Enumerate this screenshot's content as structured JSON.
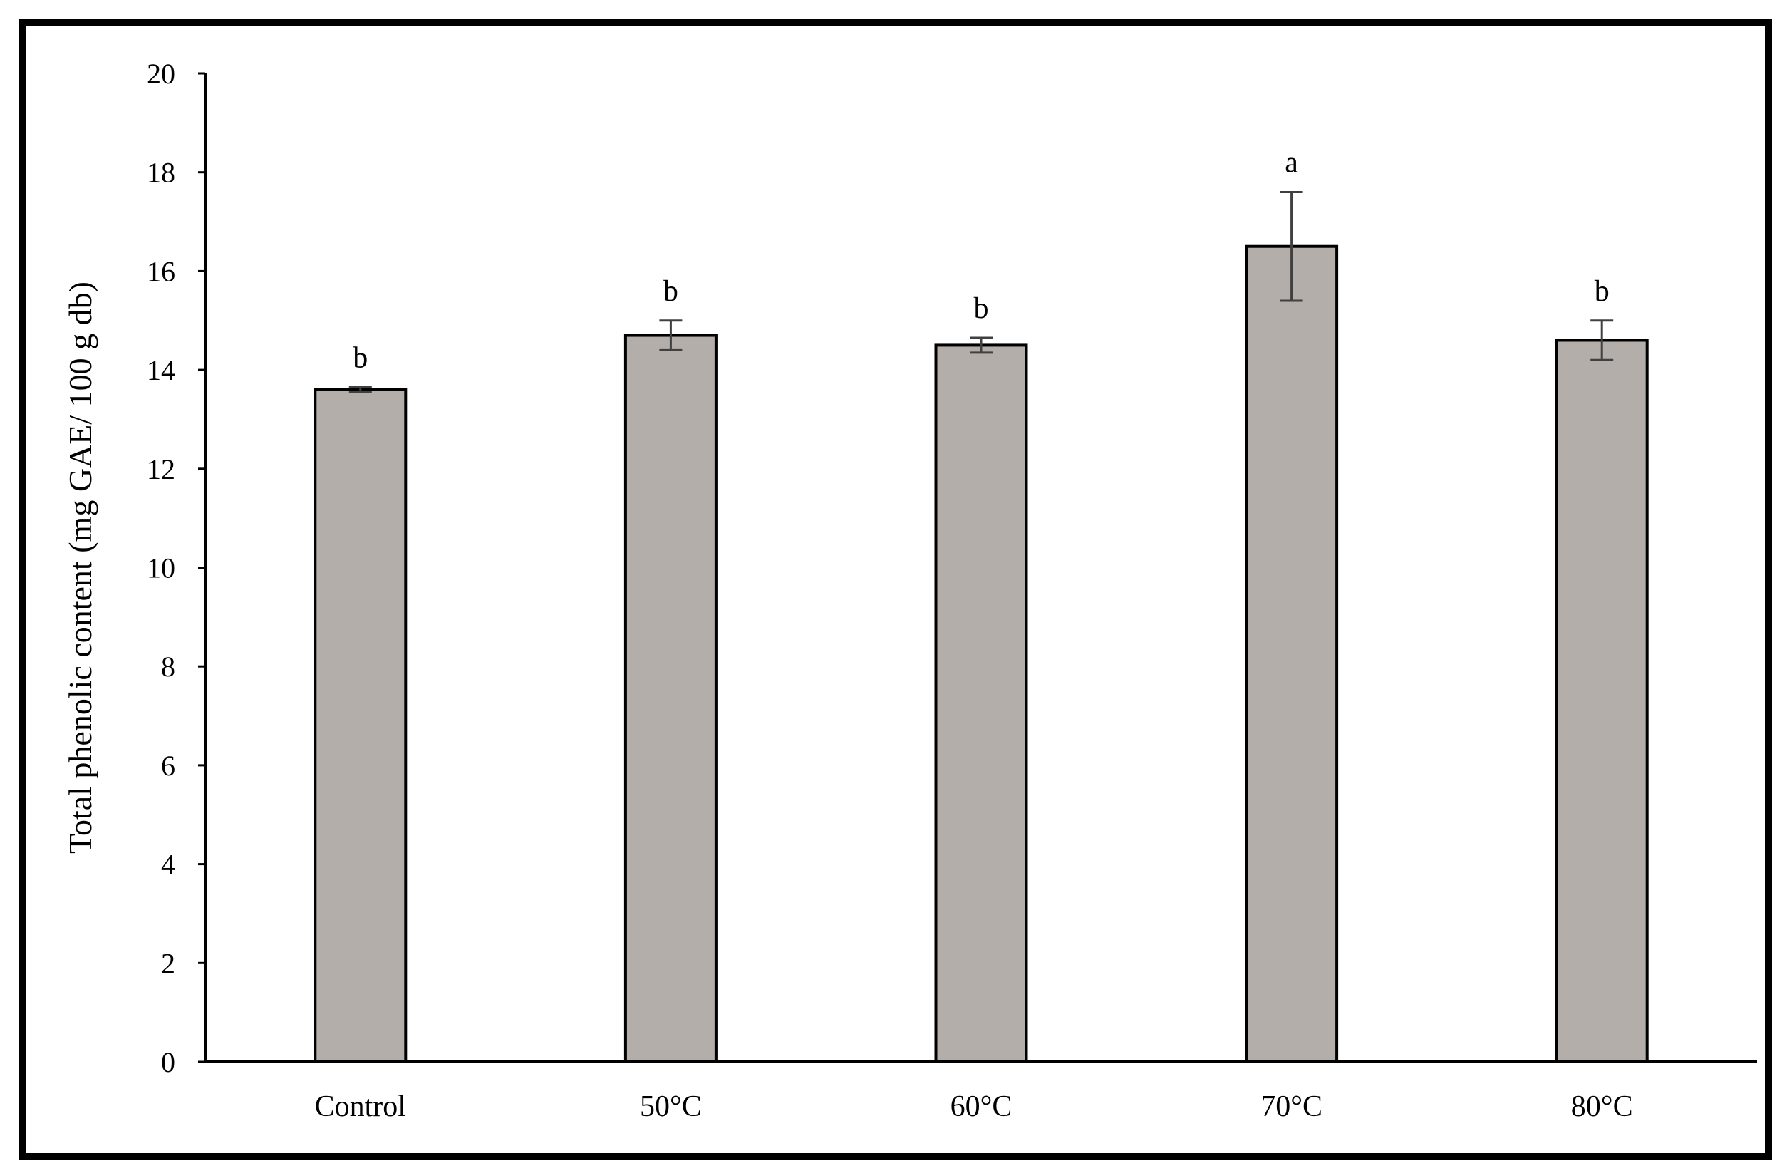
{
  "chart_data": {
    "type": "bar",
    "title": "",
    "xlabel": "",
    "ylabel": "Total phenolic content (mg GAE/ 100 g db)",
    "ylim": [
      0,
      20
    ],
    "yticks": [
      0,
      2,
      4,
      6,
      8,
      10,
      12,
      14,
      16,
      18,
      20
    ],
    "grid": false,
    "legend": "none",
    "categories": [
      "Control",
      "50°C",
      "60°C",
      "70°C",
      "80°C"
    ],
    "values": [
      13.6,
      14.7,
      14.5,
      16.5,
      14.6
    ],
    "error": [
      0.05,
      0.3,
      0.15,
      1.1,
      0.4
    ],
    "significance_letters": [
      "b",
      "b",
      "b",
      "a",
      "b"
    ],
    "bar_color": "#b4aeaa",
    "bar_edge_color": "#000000",
    "errorbar_color": "#404040"
  }
}
